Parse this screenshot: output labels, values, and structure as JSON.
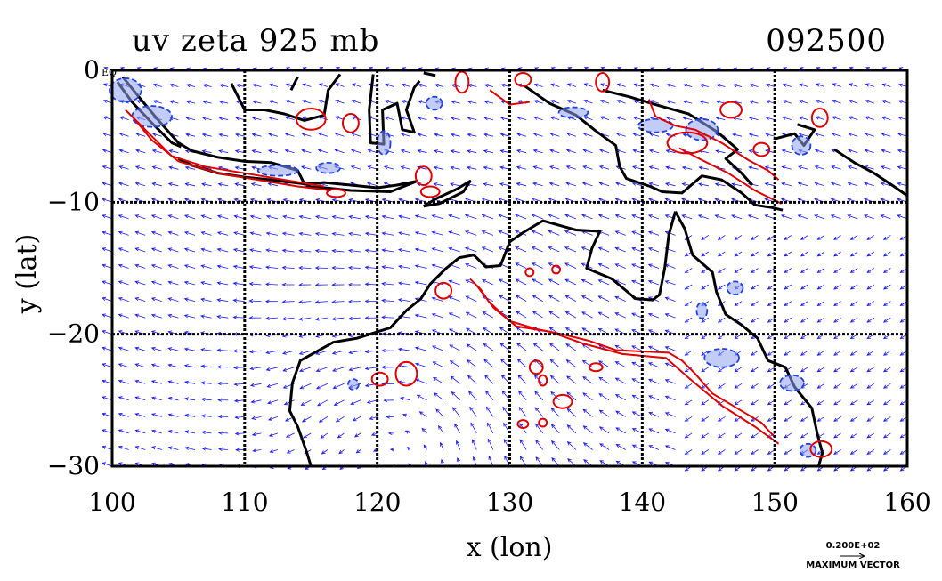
{
  "title": "uv zeta 925 mb",
  "timestamp": "092500",
  "xlabel": "x (lon)",
  "ylabel": "y (lat)",
  "eq_label": "EQ",
  "max_vector_value": "0.200E+02",
  "max_vector_label": "MAXIMUM VECTOR",
  "colors": {
    "vector": "#1a1aff",
    "positive_contour": "#e00000",
    "negative_contour": "#2244dd",
    "negative_fill": "#8fa3ee",
    "coast": "#000000",
    "grid": "#000000"
  },
  "chart_data": {
    "type": "vector-field-map",
    "title": "uv zeta 925 mb",
    "xlabel": "x (lon)",
    "ylabel": "y (lat)",
    "xlim": [
      100,
      160
    ],
    "ylim": [
      -30,
      0
    ],
    "xticks": [
      100,
      110,
      120,
      130,
      140,
      150,
      160
    ],
    "yticks": [
      0,
      -10,
      -20,
      -30
    ],
    "grid": true,
    "series": [
      {
        "name": "uv",
        "kind": "wind vectors"
      },
      {
        "name": "zeta",
        "kind": "relative vorticity contours",
        "levels": [
          "positive (red)",
          "negative (blue, shaded)"
        ]
      }
    ]
  }
}
